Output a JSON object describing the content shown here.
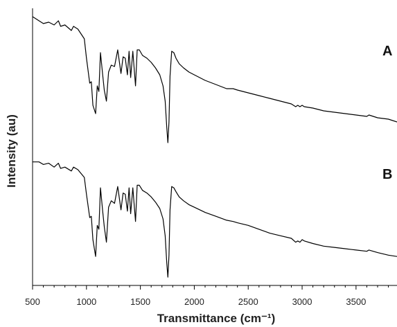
{
  "chart_data": {
    "type": "line",
    "title": "",
    "xlabel": "Transmittance (cm⁻¹)",
    "ylabel": "Intensity (au)",
    "xlim": [
      500,
      3880
    ],
    "xticks": [
      "500",
      "1000",
      "1500",
      "2000",
      "2500",
      "3000",
      "3500"
    ],
    "xtick_values": [
      500,
      1000,
      1500,
      2000,
      2500,
      3000,
      3500
    ],
    "yticks": [],
    "grid": false,
    "legend": "none",
    "series": [
      {
        "name": "A",
        "x": [
          500,
          560,
          600,
          650,
          700,
          740,
          760,
          800,
          860,
          880,
          920,
          980,
          1000,
          1030,
          1045,
          1060,
          1085,
          1100,
          1115,
          1130,
          1150,
          1165,
          1185,
          1205,
          1230,
          1260,
          1290,
          1320,
          1340,
          1360,
          1380,
          1395,
          1410,
          1430,
          1455,
          1470,
          1490,
          1520,
          1560,
          1600,
          1640,
          1680,
          1710,
          1730,
          1745,
          1755,
          1765,
          1775,
          1790,
          1810,
          1830,
          1860,
          1900,
          1950,
          2000,
          2100,
          2200,
          2300,
          2360,
          2400,
          2500,
          2600,
          2700,
          2800,
          2900,
          2940,
          2960,
          2980,
          3000,
          3020,
          3100,
          3200,
          3300,
          3400,
          3500,
          3600,
          3620,
          3700,
          3800,
          3880
        ],
        "y": [
          0.98,
          0.95,
          0.93,
          0.94,
          0.92,
          0.95,
          0.91,
          0.92,
          0.88,
          0.91,
          0.89,
          0.82,
          0.68,
          0.5,
          0.51,
          0.34,
          0.28,
          0.48,
          0.44,
          0.72,
          0.56,
          0.45,
          0.37,
          0.58,
          0.63,
          0.62,
          0.74,
          0.57,
          0.69,
          0.68,
          0.56,
          0.73,
          0.54,
          0.73,
          0.48,
          0.74,
          0.74,
          0.7,
          0.68,
          0.65,
          0.61,
          0.56,
          0.48,
          0.37,
          0.18,
          0.07,
          0.22,
          0.55,
          0.73,
          0.72,
          0.68,
          0.64,
          0.61,
          0.58,
          0.56,
          0.52,
          0.49,
          0.46,
          0.46,
          0.45,
          0.43,
          0.41,
          0.39,
          0.37,
          0.35,
          0.33,
          0.34,
          0.33,
          0.34,
          0.33,
          0.32,
          0.3,
          0.29,
          0.28,
          0.27,
          0.26,
          0.27,
          0.25,
          0.24,
          0.22
        ]
      },
      {
        "name": "B",
        "x": [
          500,
          560,
          600,
          650,
          700,
          740,
          760,
          800,
          860,
          880,
          920,
          980,
          1000,
          1030,
          1045,
          1060,
          1085,
          1100,
          1115,
          1130,
          1150,
          1165,
          1185,
          1205,
          1230,
          1260,
          1290,
          1320,
          1340,
          1360,
          1380,
          1395,
          1410,
          1430,
          1455,
          1470,
          1490,
          1520,
          1560,
          1600,
          1640,
          1680,
          1710,
          1730,
          1745,
          1755,
          1765,
          1775,
          1790,
          1810,
          1830,
          1860,
          1900,
          1950,
          2000,
          2100,
          2200,
          2300,
          2360,
          2400,
          2500,
          2600,
          2700,
          2800,
          2900,
          2940,
          2960,
          2980,
          3000,
          3020,
          3100,
          3200,
          3300,
          3400,
          3500,
          3600,
          3620,
          3700,
          3800,
          3880
        ],
        "y": [
          0.9,
          0.9,
          0.88,
          0.89,
          0.86,
          0.89,
          0.85,
          0.86,
          0.83,
          0.86,
          0.84,
          0.78,
          0.65,
          0.47,
          0.48,
          0.3,
          0.17,
          0.41,
          0.38,
          0.7,
          0.52,
          0.4,
          0.28,
          0.55,
          0.6,
          0.58,
          0.71,
          0.53,
          0.66,
          0.65,
          0.52,
          0.7,
          0.5,
          0.7,
          0.44,
          0.72,
          0.72,
          0.68,
          0.66,
          0.63,
          0.59,
          0.54,
          0.46,
          0.33,
          0.12,
          0.01,
          0.18,
          0.53,
          0.71,
          0.7,
          0.67,
          0.63,
          0.6,
          0.57,
          0.55,
          0.51,
          0.48,
          0.45,
          0.44,
          0.43,
          0.41,
          0.38,
          0.35,
          0.33,
          0.31,
          0.28,
          0.29,
          0.28,
          0.3,
          0.29,
          0.27,
          0.25,
          0.24,
          0.23,
          0.22,
          0.21,
          0.22,
          0.2,
          0.18,
          0.17
        ]
      }
    ]
  }
}
